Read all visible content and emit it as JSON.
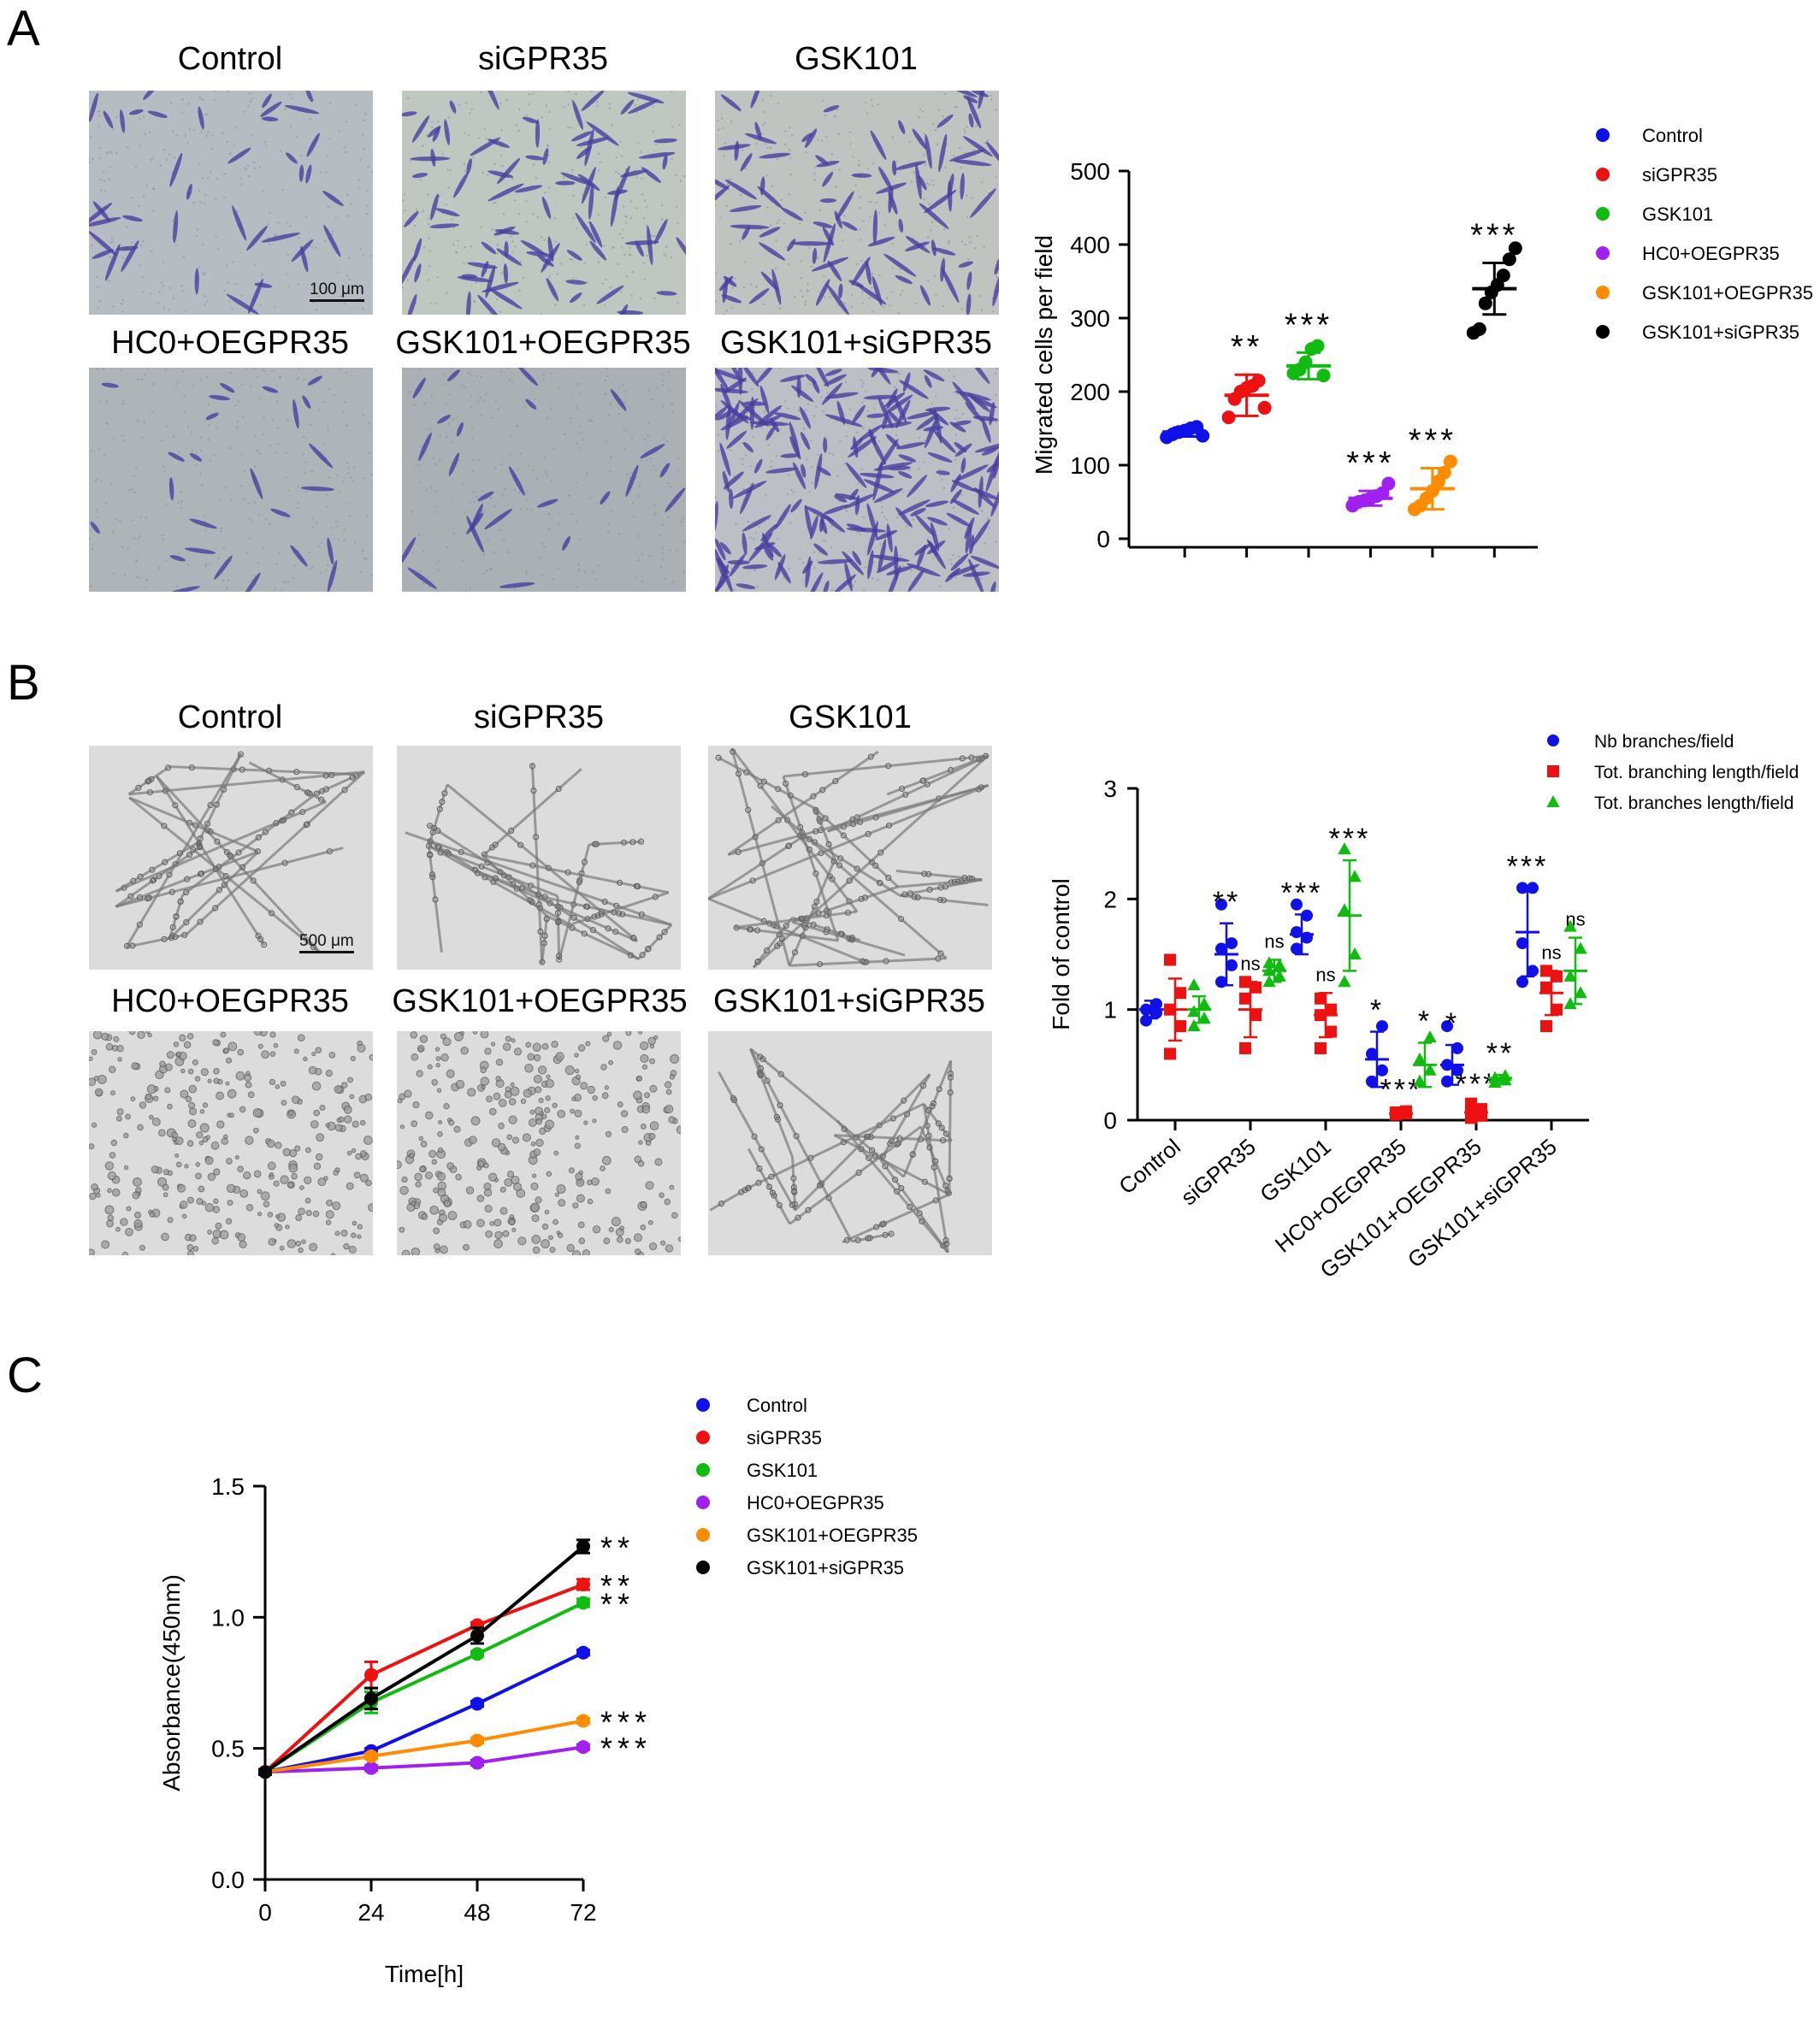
{
  "panels": {
    "A": {
      "letter": "A",
      "image_titles": [
        "Control",
        "siGPR35",
        "GSK101",
        "HC0+OEGPR35",
        "GSK101+OEGPR35",
        "GSK101+siGPR35"
      ],
      "scale_bar": "100 μm"
    },
    "B": {
      "letter": "B",
      "image_titles": [
        "Control",
        "siGPR35",
        "GSK101",
        "HC0+OEGPR35",
        "GSK101+OEGPR35",
        "GSK101+siGPR35"
      ],
      "scale_bar": "500 μm"
    },
    "C": {
      "letter": "C"
    }
  },
  "chart_data": [
    {
      "id": "A",
      "type": "scatter",
      "ylabel": "Migrated cells per field",
      "ylim": [
        0,
        500
      ],
      "yticks": [
        0,
        100,
        200,
        300,
        400,
        500
      ],
      "legend_position": "top-right",
      "groups": [
        {
          "name": "Control",
          "color": "#1010e8",
          "mean": 145,
          "sd": 6,
          "points": [
            138,
            142,
            145,
            147,
            150,
            152,
            140
          ],
          "sig": ""
        },
        {
          "name": "siGPR35",
          "color": "#ee1111",
          "mean": 195,
          "sd": 28,
          "points": [
            165,
            190,
            200,
            205,
            208,
            215,
            178
          ],
          "sig": "**"
        },
        {
          "name": "GSK101",
          "color": "#11bb11",
          "mean": 235,
          "sd": 18,
          "points": [
            225,
            230,
            240,
            258,
            262,
            222
          ],
          "sig": "***"
        },
        {
          "name": "HC0+OEGPR35",
          "color": "#a020f0",
          "mean": 55,
          "sd": 10,
          "points": [
            45,
            50,
            52,
            55,
            58,
            62,
            75
          ],
          "sig": "***"
        },
        {
          "name": "GSK101+OEGPR35",
          "color": "#ff8c00",
          "mean": 68,
          "sd": 28,
          "points": [
            40,
            45,
            55,
            65,
            78,
            90,
            105
          ],
          "sig": "***"
        },
        {
          "name": "GSK101+siGPR35",
          "color": "#000000",
          "mean": 340,
          "sd": 35,
          "points": [
            280,
            285,
            320,
            335,
            345,
            358,
            380,
            395
          ],
          "sig": "***"
        }
      ]
    },
    {
      "id": "B",
      "type": "scatter",
      "ylabel": "Fold of control",
      "ylim": [
        0,
        3
      ],
      "yticks": [
        0,
        1,
        2,
        3
      ],
      "categories": [
        "Control",
        "siGPR35",
        "GSK101",
        "HC0+OEGPR35",
        "GSK101+OEGPR35",
        "GSK101+siGPR35"
      ],
      "legend_position": "top-right",
      "series": [
        {
          "name": "Nb branches/field",
          "color": "#1010e8",
          "marker": "circle",
          "means": [
            1.0,
            1.5,
            1.68,
            0.55,
            0.5,
            1.7
          ],
          "sd": [
            0.08,
            0.28,
            0.18,
            0.25,
            0.18,
            0.4
          ],
          "points": [
            [
              0.9,
              0.97,
              1.0,
              1.05
            ],
            [
              1.25,
              1.4,
              1.55,
              1.6,
              1.95
            ],
            [
              1.55,
              1.65,
              1.7,
              1.85,
              1.95
            ],
            [
              0.35,
              0.45,
              0.6,
              0.85
            ],
            [
              0.35,
              0.45,
              0.5,
              0.65,
              0.85
            ],
            [
              1.25,
              1.35,
              1.6,
              2.1,
              2.1
            ]
          ],
          "sig": [
            "",
            "**",
            "***",
            "*",
            "*",
            "***"
          ]
        },
        {
          "name": "Tot. branching length/field",
          "color": "#ee1111",
          "marker": "square",
          "means": [
            1.0,
            1.0,
            0.95,
            0.06,
            0.07,
            1.15
          ],
          "sd": [
            0.28,
            0.25,
            0.2,
            0.02,
            0.06,
            0.2
          ],
          "points": [
            [
              0.6,
              0.85,
              1.0,
              1.15,
              1.45
            ],
            [
              0.65,
              0.95,
              1.1,
              1.2,
              1.25
            ],
            [
              0.65,
              0.8,
              0.95,
              1.0,
              1.1
            ],
            [
              0.05,
              0.06,
              0.07,
              0.08
            ],
            [
              0.02,
              0.04,
              0.06,
              0.1,
              0.15
            ],
            [
              0.85,
              1.0,
              1.2,
              1.3,
              1.35
            ]
          ],
          "sig": [
            "",
            "ns",
            "ns",
            "***",
            "***",
            "ns"
          ]
        },
        {
          "name": "Tot. branches length/field",
          "color": "#11bb11",
          "marker": "triangle",
          "means": [
            1.0,
            1.35,
            1.85,
            0.5,
            0.38,
            1.35
          ],
          "sd": [
            0.12,
            0.1,
            0.5,
            0.2,
            0.03,
            0.3
          ],
          "points": [
            [
              0.85,
              0.92,
              0.98,
              1.05,
              1.22
            ],
            [
              1.25,
              1.3,
              1.35,
              1.4,
              1.42
            ],
            [
              1.25,
              1.5,
              1.9,
              2.2,
              2.45
            ],
            [
              0.35,
              0.45,
              0.55,
              0.75
            ],
            [
              0.34,
              0.36,
              0.38,
              0.4
            ],
            [
              1.05,
              1.15,
              1.3,
              1.55,
              1.75
            ]
          ],
          "sig": [
            "",
            "ns",
            "***",
            "*",
            "**",
            "ns"
          ]
        }
      ]
    },
    {
      "id": "C",
      "type": "line",
      "xlabel": "Time[h]",
      "ylabel": "Absorbance(450nm)",
      "x": [
        0,
        24,
        48,
        72
      ],
      "xlim": [
        0,
        72
      ],
      "ylim": [
        0,
        1.5
      ],
      "yticks": [
        "0.0",
        "0.5",
        "1.0",
        "1.5"
      ],
      "legend_position": "top-right",
      "series": [
        {
          "name": "Control",
          "color": "#1010e8",
          "values": [
            0.41,
            0.49,
            0.67,
            0.865
          ],
          "err": [
            0.01,
            0.01,
            0.01,
            0.01
          ],
          "sig": ""
        },
        {
          "name": "siGPR35",
          "color": "#ee1111",
          "values": [
            0.41,
            0.78,
            0.97,
            1.125
          ],
          "err": [
            0.01,
            0.05,
            0.01,
            0.02
          ],
          "sig": "**"
        },
        {
          "name": "GSK101",
          "color": "#11bb11",
          "values": [
            0.41,
            0.675,
            0.86,
            1.055
          ],
          "err": [
            0.01,
            0.04,
            0.01,
            0.015
          ],
          "sig": "**"
        },
        {
          "name": "HC0+OEGPR35",
          "color": "#a020f0",
          "values": [
            0.41,
            0.425,
            0.445,
            0.505
          ],
          "err": [
            0.01,
            0.01,
            0.01,
            0.01
          ],
          "sig": "***"
        },
        {
          "name": "GSK101+OEGPR35",
          "color": "#ff8c00",
          "values": [
            0.41,
            0.47,
            0.53,
            0.605
          ],
          "err": [
            0.01,
            0.01,
            0.01,
            0.01
          ],
          "sig": "***"
        },
        {
          "name": "GSK101+siGPR35",
          "color": "#000000",
          "values": [
            0.41,
            0.69,
            0.93,
            1.27
          ],
          "err": [
            0.01,
            0.04,
            0.03,
            0.025
          ],
          "sig": "**"
        }
      ]
    }
  ]
}
